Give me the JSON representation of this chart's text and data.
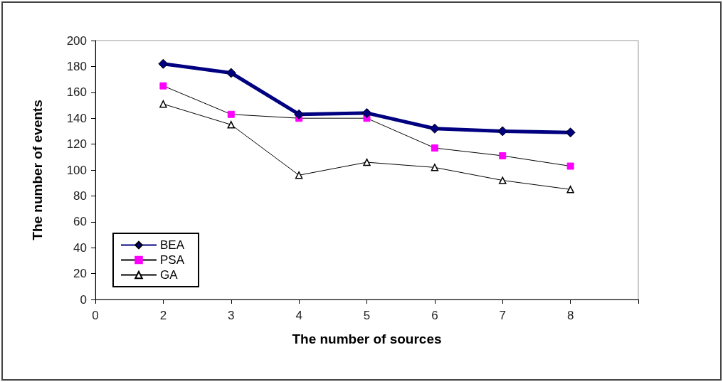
{
  "chart_data": {
    "type": "line",
    "xlabel": "The number of sources",
    "ylabel": "The number of events",
    "categories": [
      "0",
      "2",
      "3",
      "4",
      "5",
      "6",
      "7",
      "8",
      null
    ],
    "ylim": [
      0,
      200
    ],
    "yticks": [
      0,
      20,
      40,
      60,
      80,
      100,
      120,
      140,
      160,
      180,
      200
    ],
    "grid": false,
    "legend": "bottom left",
    "series": [
      {
        "name": "BEA",
        "color": "#000080",
        "marker": "diamond",
        "values": [
          null,
          182,
          175,
          143,
          144,
          132,
          130,
          129,
          null
        ]
      },
      {
        "name": "PSA",
        "color": "#ff00ff",
        "marker": "square",
        "values": [
          null,
          165,
          143,
          140,
          140,
          117,
          111,
          103,
          null
        ]
      },
      {
        "name": "GA",
        "color": "#000000",
        "marker": "triangle",
        "values": [
          null,
          151,
          135,
          96,
          106,
          102,
          92,
          85,
          null
        ]
      }
    ]
  }
}
